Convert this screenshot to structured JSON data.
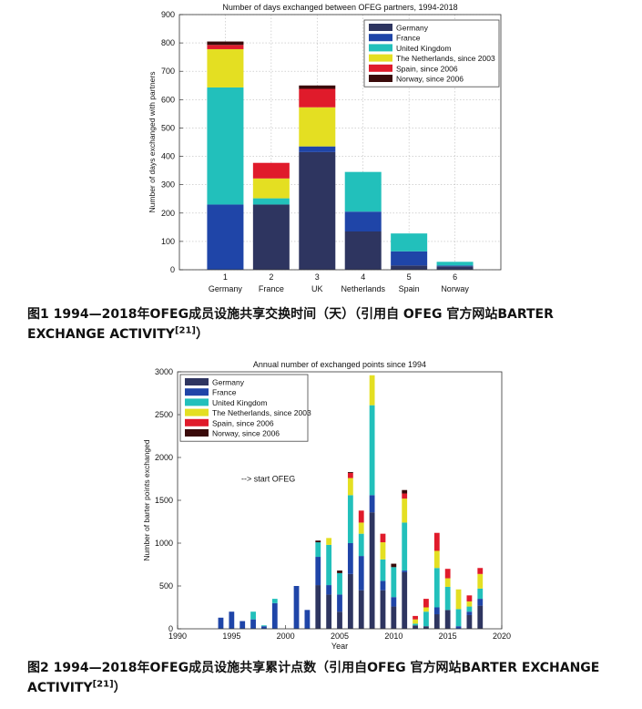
{
  "figure1": {
    "chart_data": {
      "type": "bar",
      "stacked": true,
      "title": "Number of days exchanged between OFEG partners, 1994-2018",
      "ylabel": "Number of days exchanged with partners",
      "xlabel": "",
      "ylim": [
        0,
        900
      ],
      "yticks": [
        0,
        100,
        200,
        300,
        400,
        500,
        600,
        700,
        800,
        900
      ],
      "grid": true,
      "legend_position": "top-right",
      "categories": [
        "1",
        "2",
        "3",
        "4",
        "5",
        "6"
      ],
      "category_names": [
        "Germany",
        "France",
        "UK",
        "Netherlands",
        "Spain",
        "Norway"
      ],
      "series": [
        {
          "name": "Germany",
          "color": "#2e3560",
          "values": [
            0,
            230,
            415,
            135,
            15,
            12
          ]
        },
        {
          "name": "France",
          "color": "#1f45a8",
          "values": [
            230,
            0,
            20,
            70,
            50,
            3
          ]
        },
        {
          "name": "United Kingdom",
          "color": "#22c0bb",
          "values": [
            413,
            22,
            0,
            140,
            63,
            13
          ]
        },
        {
          "name": "The Netherlands, since 2003",
          "color": "#e4df22",
          "values": [
            135,
            70,
            138,
            0,
            0,
            0
          ]
        },
        {
          "name": "Spain, since 2006",
          "color": "#e01b2b",
          "values": [
            15,
            55,
            65,
            0,
            0,
            0
          ]
        },
        {
          "name": "Norway, since 2006",
          "color": "#3a0a0a",
          "values": [
            12,
            0,
            12,
            0,
            0,
            0
          ]
        }
      ]
    },
    "caption": {
      "text": "图1 1994—2018年OFEG成员设施共享交换时间（天）（引用自 OFEG 官方网站BARTER EXCHANGE ACTIVITY",
      "ref": "[21]",
      "tail": "）"
    }
  },
  "figure2": {
    "chart_data": {
      "type": "bar",
      "stacked": true,
      "title": "Annual number of exchanged points since 1994",
      "xlabel": "Year",
      "ylabel": "Number of barter points exchanged",
      "xlim": [
        1990,
        2020
      ],
      "ylim": [
        0,
        3000
      ],
      "xticks": [
        1990,
        1995,
        2000,
        2005,
        2010,
        2015,
        2020
      ],
      "yticks": [
        0,
        500,
        1000,
        1500,
        2000,
        2500,
        3000
      ],
      "grid": false,
      "legend_position": "top-left",
      "annotation": "--> start OFEG",
      "x": [
        1994,
        1995,
        1996,
        1997,
        1998,
        1999,
        2000,
        2001,
        2002,
        2003,
        2004,
        2005,
        2006,
        2007,
        2008,
        2009,
        2010,
        2011,
        2012,
        2013,
        2014,
        2015,
        2016,
        2017,
        2018
      ],
      "series": [
        {
          "name": "Germany",
          "color": "#2e3560",
          "values": [
            0,
            0,
            0,
            0,
            0,
            0,
            0,
            0,
            0,
            510,
            400,
            200,
            640,
            450,
            1360,
            450,
            260,
            660,
            40,
            30,
            170,
            220,
            0,
            160,
            270
          ]
        },
        {
          "name": "France",
          "color": "#1f45a8",
          "values": [
            130,
            200,
            90,
            110,
            30,
            300,
            0,
            500,
            220,
            330,
            110,
            200,
            360,
            400,
            200,
            110,
            110,
            20,
            0,
            0,
            80,
            0,
            30,
            40,
            80
          ]
        },
        {
          "name": "United Kingdom",
          "color": "#22c0bb",
          "values": [
            0,
            0,
            0,
            90,
            10,
            50,
            0,
            0,
            0,
            170,
            470,
            250,
            560,
            260,
            1050,
            250,
            350,
            560,
            20,
            170,
            460,
            270,
            200,
            60,
            120
          ]
        },
        {
          "name": "The Netherlands, since 2003",
          "color": "#e4df22",
          "values": [
            0,
            0,
            0,
            0,
            0,
            0,
            0,
            0,
            0,
            0,
            80,
            0,
            200,
            130,
            350,
            200,
            0,
            280,
            50,
            50,
            200,
            100,
            230,
            60,
            170
          ]
        },
        {
          "name": "Spain, since 2006",
          "color": "#e01b2b",
          "values": [
            0,
            0,
            0,
            0,
            0,
            0,
            0,
            0,
            0,
            0,
            0,
            0,
            60,
            140,
            0,
            100,
            0,
            60,
            40,
            100,
            210,
            110,
            0,
            70,
            70
          ]
        },
        {
          "name": "Norway, since 2006",
          "color": "#3a0a0a",
          "values": [
            0,
            0,
            0,
            0,
            0,
            0,
            0,
            0,
            0,
            20,
            0,
            30,
            10,
            0,
            0,
            0,
            40,
            40,
            0,
            0,
            0,
            0,
            0,
            0,
            0
          ]
        }
      ]
    },
    "caption": {
      "text": "图2 1994—2018年OFEG成员设施共享累计点数（引用自OFEG 官方网站BARTER EXCHANGE ACTIVITY",
      "ref": "[21]",
      "tail": "）"
    }
  }
}
